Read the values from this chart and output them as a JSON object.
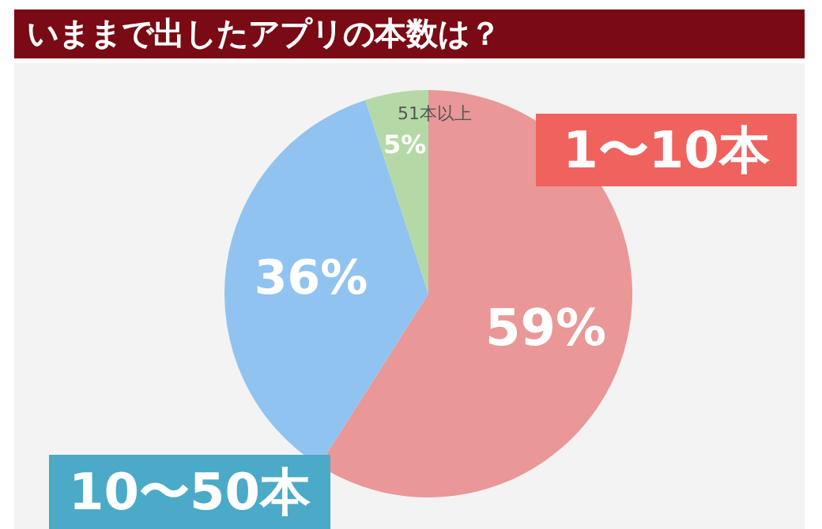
{
  "chart_data": {
    "type": "pie",
    "title": "いままで出したアプリの本数は？",
    "categories": [
      "1〜10本",
      "10〜50本",
      "51本以上"
    ],
    "values": [
      59,
      36,
      5
    ],
    "value_labels": [
      "59%",
      "36%",
      "5%"
    ],
    "colors": [
      "#e99797",
      "#90c3f0",
      "#b5d8a7"
    ]
  }
}
